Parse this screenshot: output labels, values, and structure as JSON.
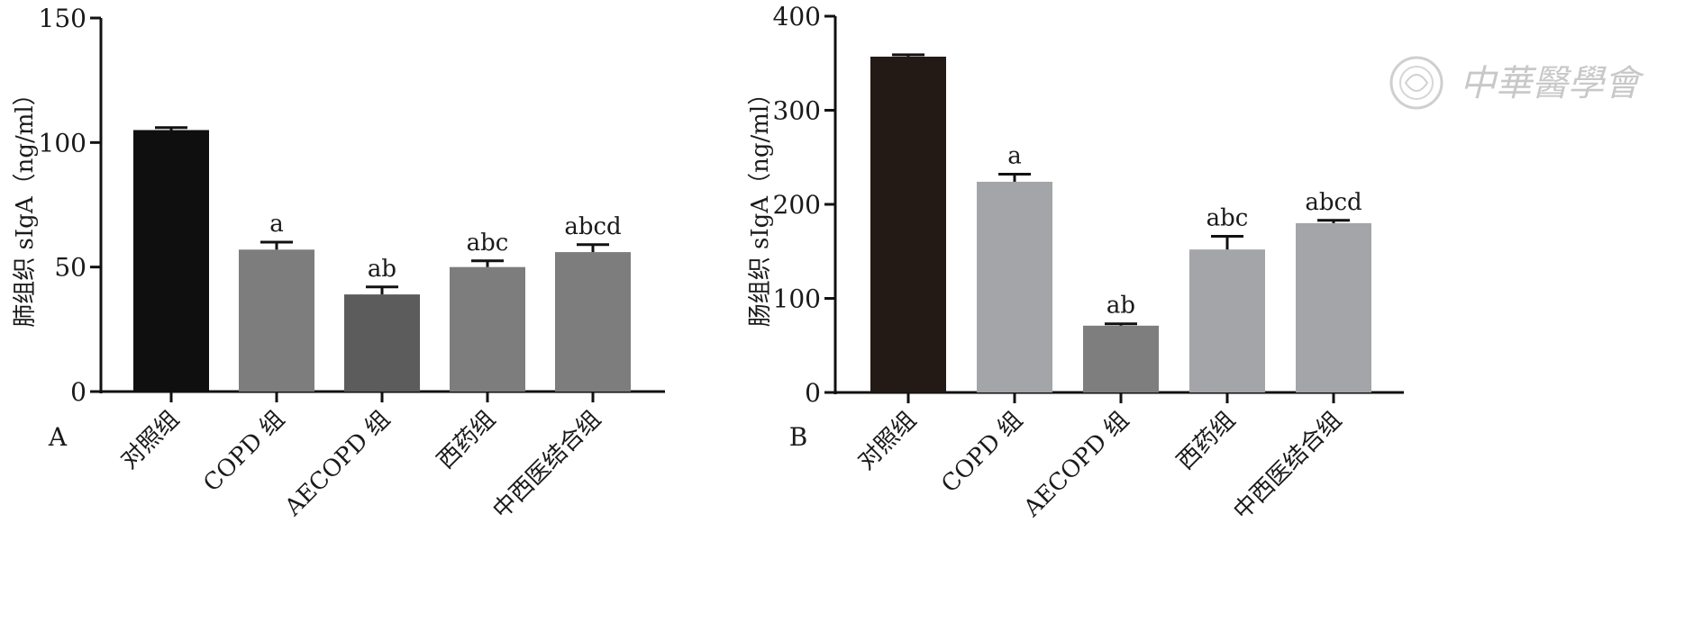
{
  "chart_data": [
    {
      "type": "bar",
      "panel_label": "A",
      "ylabel": "肺组织 sIgA（ng/ml）",
      "xlabel": "",
      "ylim": [
        0,
        150
      ],
      "yticks": [
        0,
        50,
        100,
        150
      ],
      "categories": [
        "对照组",
        "COPD 组",
        "AECOPD 组",
        "西药组",
        "中西医结合组"
      ],
      "values": [
        105,
        57,
        39,
        50,
        56
      ],
      "errors": [
        1,
        3,
        3,
        2.5,
        3
      ],
      "sig_labels": [
        "",
        "a",
        "ab",
        "abc",
        "abcd"
      ],
      "bar_colors": [
        "#0f0f0f",
        "#7d7d7d",
        "#5c5c5c",
        "#7d7d7d",
        "#7d7d7d"
      ],
      "grid": false
    },
    {
      "type": "bar",
      "panel_label": "B",
      "ylabel": "肠组织 sIgA（ng/ml）",
      "xlabel": "",
      "ylim": [
        0,
        400
      ],
      "yticks": [
        0,
        100,
        200,
        300,
        400
      ],
      "categories": [
        "对照组",
        "COPD 组",
        "AECOPD 组",
        "西药组",
        "中西医结合组"
      ],
      "values": [
        357,
        224,
        71,
        152,
        180
      ],
      "errors": [
        2,
        8,
        2,
        14,
        3
      ],
      "sig_labels": [
        "",
        "a",
        "ab",
        "abc",
        "abcd"
      ],
      "bar_colors": [
        "#231915",
        "#a4a5a9",
        "#7e7e7e",
        "#a4a5a9",
        "#a4a5a9"
      ],
      "grid": false
    }
  ],
  "watermark": {
    "text": "中華醫學會",
    "color": "#c8c8c8",
    "seal_icon": "society-seal-icon"
  }
}
